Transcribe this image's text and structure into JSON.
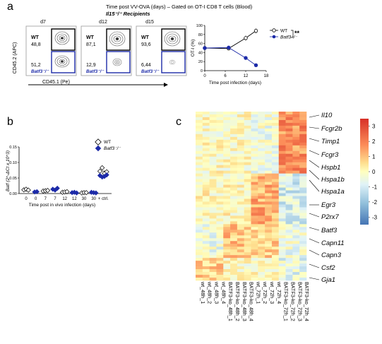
{
  "panel_a": {
    "label": "a",
    "title": "Time post VV-OVA (days) – Gated on OT-I CD8 T cells (Blood)",
    "subtitle": "Il15⁻/⁻ Recipients",
    "ylabel": "CD45.2 (APC)",
    "xlabel": "CD45.1 (Pe)",
    "days": [
      {
        "day": "d7",
        "wt_label": "WT",
        "wt_value": "48,8",
        "ko_value": "51,2",
        "ko_label": "Batf3⁻/⁻"
      },
      {
        "day": "d12",
        "wt_label": "WT",
        "wt_value": "87,1",
        "ko_value": "12,9",
        "ko_label": "Batf3⁻/⁻"
      },
      {
        "day": "d15",
        "wt_label": "WT",
        "wt_value": "93,6",
        "ko_value": "6,44",
        "ko_label": "Batf3⁻/⁻"
      }
    ],
    "colors": {
      "ko": "#1c2aa8",
      "wt": "#222222"
    }
  },
  "panel_a_line": {
    "chart_data": {
      "type": "line",
      "ylabel": "OT-I (%)",
      "xlabel": "Time post infection (days)",
      "xticks": [
        0,
        6,
        12,
        18
      ],
      "yticks": [
        0,
        20,
        40,
        60,
        80,
        100
      ],
      "xlim": [
        0,
        18
      ],
      "ylim": [
        0,
        100
      ],
      "x": [
        0,
        7,
        12,
        15
      ],
      "series": [
        {
          "name": "WT",
          "values": [
            50,
            49,
            72,
            88
          ],
          "marker": "open-circle"
        },
        {
          "name": "Batf3⁻/⁻",
          "values": [
            50,
            51,
            28,
            12
          ],
          "marker": "filled-circle"
        }
      ],
      "significance": "**"
    }
  },
  "panel_b": {
    "label": "b",
    "chart_data": {
      "type": "scatter",
      "ylabel": "Batf (2^-ΔCt x 10^3)",
      "xlabel": "Time post in vivo infection (days)",
      "categories": [
        "0",
        "0",
        "7",
        "7",
        "12",
        "12",
        "30",
        "30",
        "+ ctrl."
      ],
      "yticks": [
        0.0,
        0.05,
        0.1,
        0.15
      ],
      "ytick_labels": [
        "0.00",
        "0.05",
        "0.10",
        "0.15"
      ],
      "ylim": [
        0,
        0.15
      ],
      "series": [
        {
          "name": "WT",
          "marker": "open-diamond",
          "groups": [
            [
              0.012,
              0.014,
              0.011
            ],
            [],
            [
              0.008,
              0.009,
              0.01
            ],
            [],
            [
              0.004,
              0.005,
              0.006
            ],
            [],
            [
              0.002,
              0.003,
              0.003
            ],
            [],
            [
              0.072,
              0.083,
              0.065,
              0.07
            ]
          ]
        },
        {
          "name": "Batf3⁻/⁻",
          "marker": "filled-diamond",
          "groups": [
            [],
            [
              0.005,
              0.006
            ],
            [],
            [
              0.014,
              0.011,
              0.017
            ],
            [],
            [
              0.003,
              0.004,
              0.002
            ],
            [],
            [
              0.004,
              0.003,
              0.002
            ],
            [
              0.058,
              0.053,
              0.055,
              0.06
            ]
          ]
        }
      ]
    }
  },
  "panel_c": {
    "label": "c",
    "chart_data": {
      "type": "heatmap",
      "columns": [
        "wt_48h_1",
        "wt_48h_2",
        "wt_48h_3",
        "wt_48h_4",
        "BATF3-ko_48h_1",
        "BATF3-ko_48h_2",
        "BATF3-ko_48h_3",
        "BATF3-ko_48h_4",
        "wt_72h_1",
        "wt_72h_2",
        "wt_72h_3",
        "wt_72h_4",
        "BATF3-ko_72h_1",
        "BATF3-ko_72h_2",
        "BATF3-ko_72h_3",
        "BATF3-ko_72h_4"
      ],
      "colorbar_ticks": [
        3,
        2,
        1,
        0,
        -1,
        -2,
        -3
      ],
      "colorbar_range": [
        -3.5,
        3.5
      ],
      "genes": [
        "Il10",
        "Fcgr2b",
        "Timp1",
        "Fcgr3",
        "Hspb1",
        "Hspa1b",
        "Hspa1a",
        "Egr3",
        "P2rx7",
        "Batf3",
        "Capn11",
        "Capn3",
        "Csf2",
        "Gja1"
      ]
    }
  }
}
